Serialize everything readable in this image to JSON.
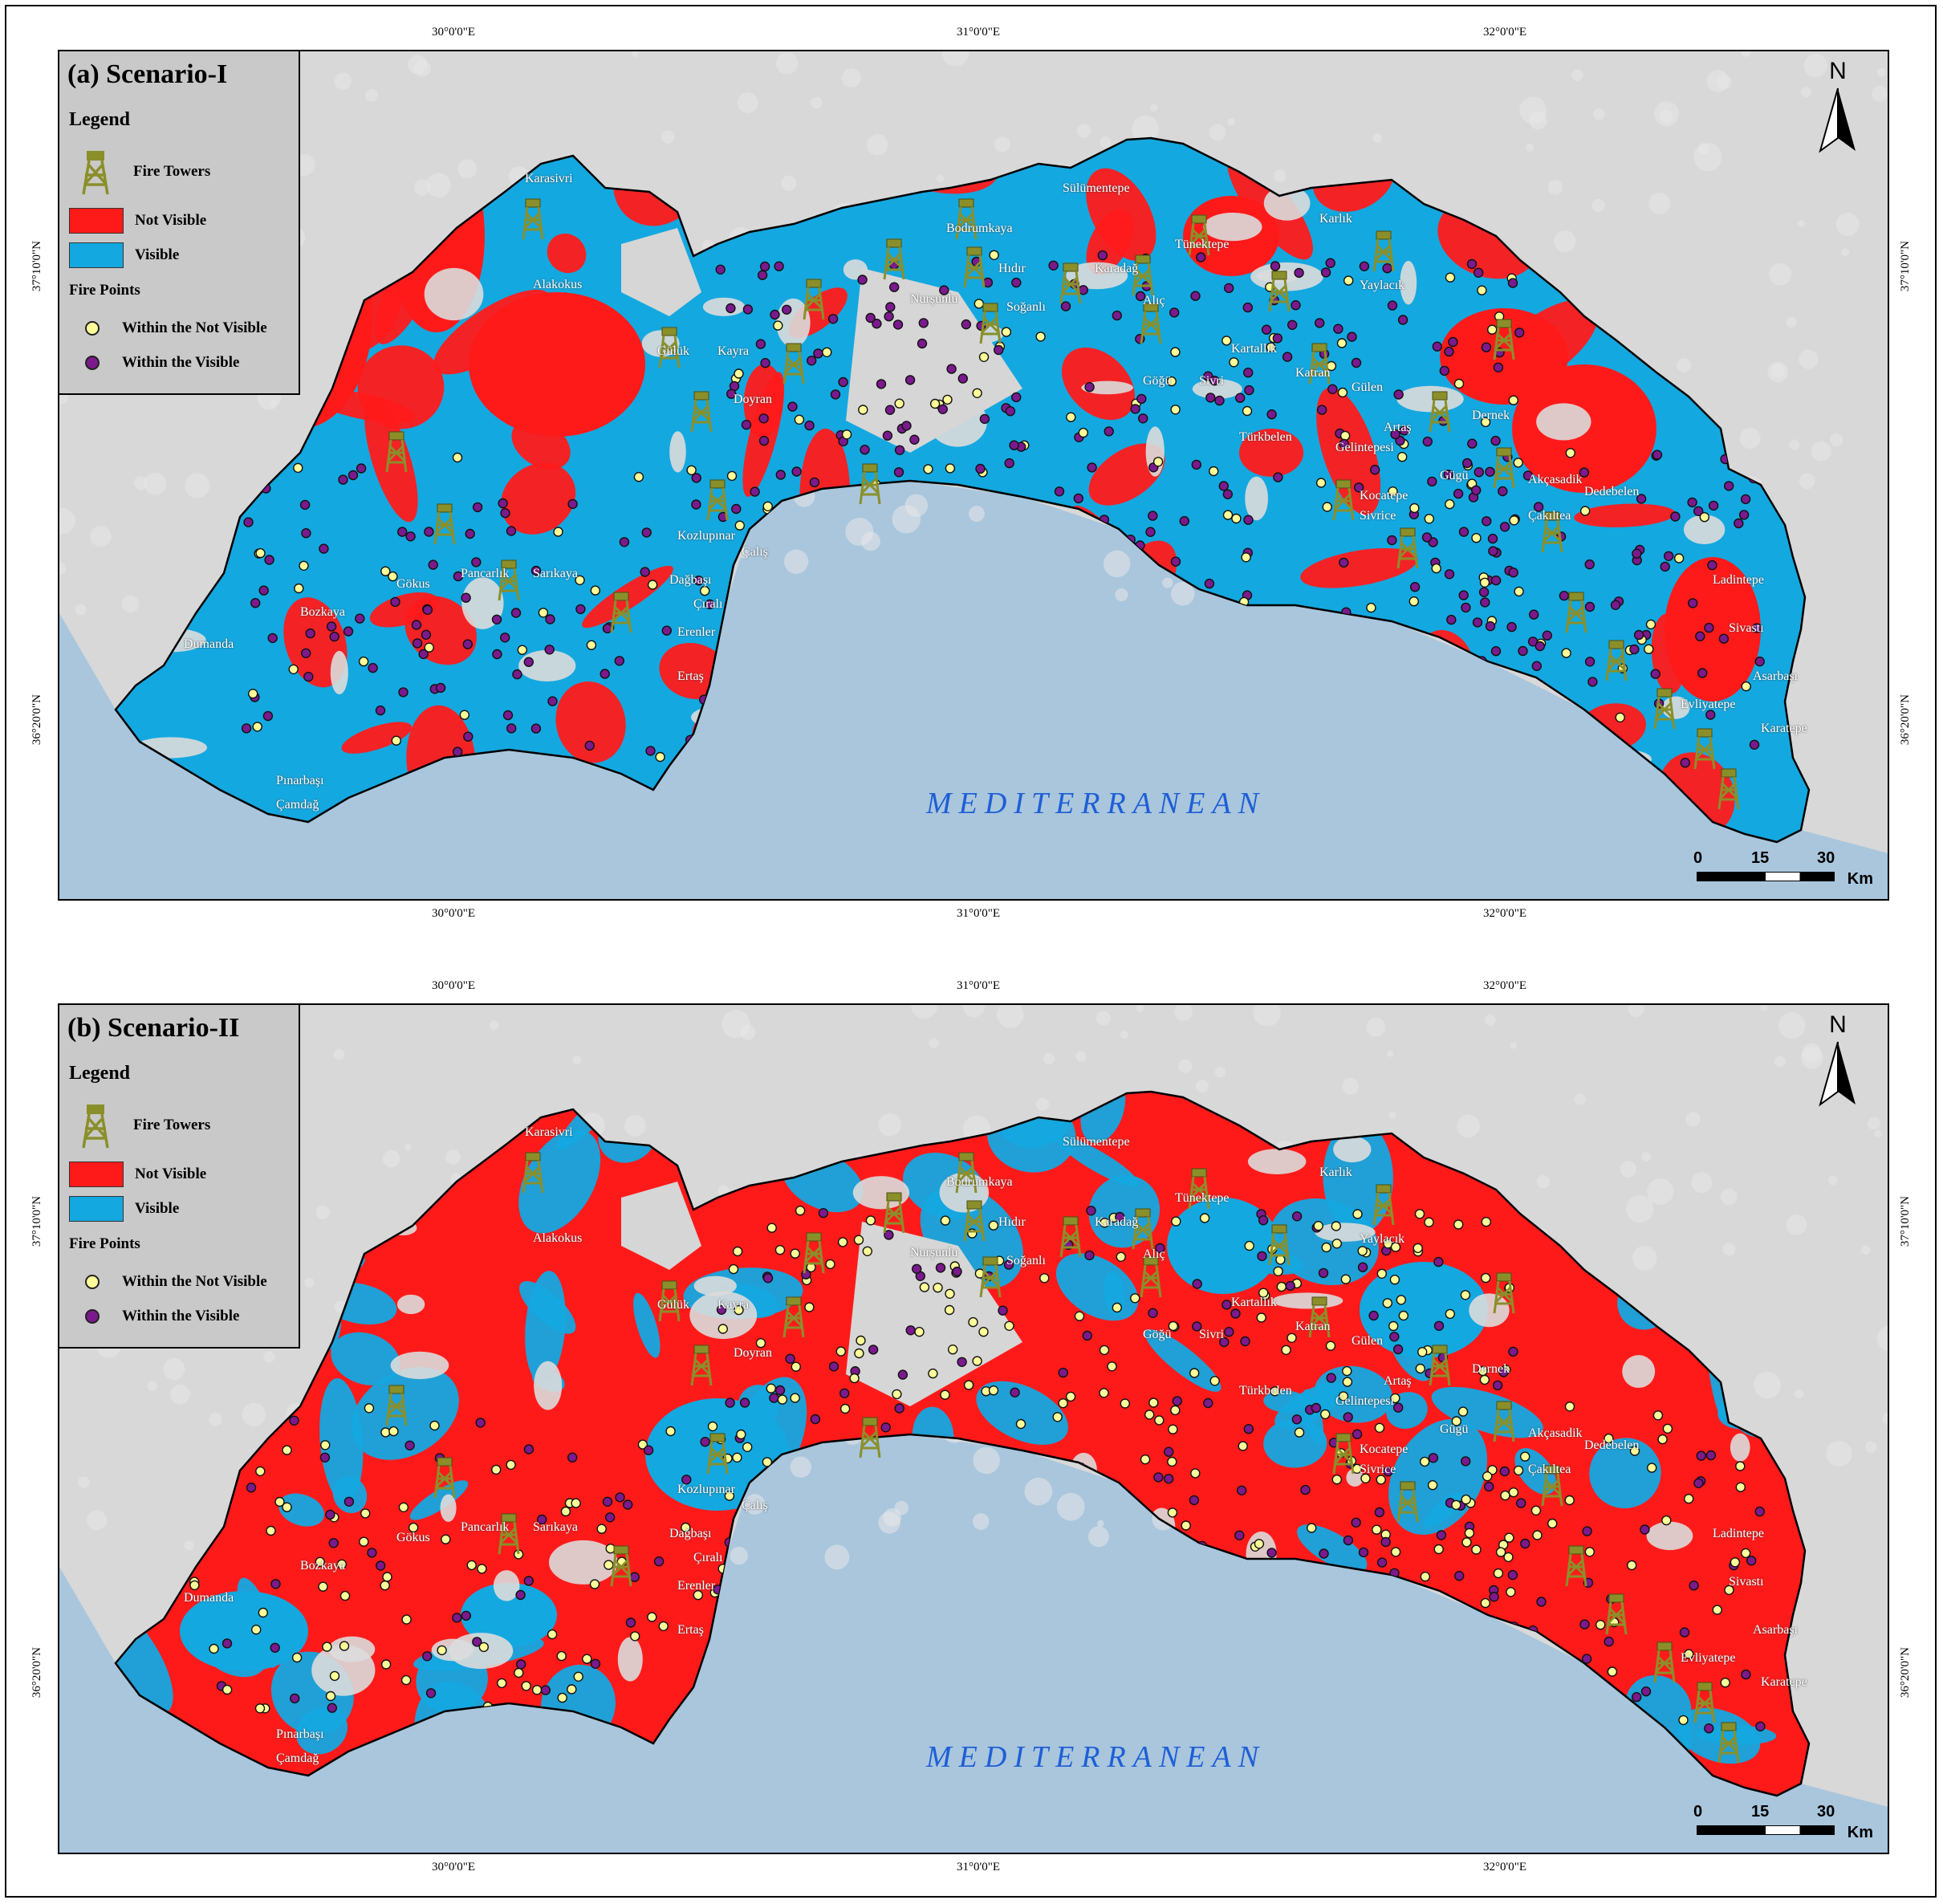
{
  "panels": [
    {
      "title": "(a) Scenario-I",
      "legend_heading": "Legend",
      "tower_label": "Fire Towers",
      "not_visible_label": "Not Visible",
      "visible_label": "Visible",
      "fire_points_heading": "Fire Points",
      "within_not_visible_label": "Within the Not Visible",
      "within_visible_label": "Within the Visible",
      "sea_label": "MEDITERRANEAN",
      "north_label": "N",
      "scale": {
        "s0": "0",
        "s1": "15",
        "s2": "30",
        "unit": "Km"
      },
      "ticks": {
        "x1": "30°0'0\"E",
        "x2": "31°0'0\"E",
        "x3": "32°0'0\"E",
        "y1": "37°10'0\"N",
        "y2": "36°20'0\"N"
      },
      "dominant_class": "visible"
    },
    {
      "title": "(b) Scenario-II",
      "legend_heading": "Legend",
      "tower_label": "Fire Towers",
      "not_visible_label": "Not Visible",
      "visible_label": "Visible",
      "fire_points_heading": "Fire Points",
      "within_not_visible_label": "Within the Not Visible",
      "within_visible_label": "Within the Visible",
      "sea_label": "MEDITERRANEAN",
      "north_label": "N",
      "scale": {
        "s0": "0",
        "s1": "15",
        "s2": "30",
        "unit": "Km"
      },
      "ticks": {
        "x1": "30°0'0\"E",
        "x2": "31°0'0\"E",
        "x3": "32°0'0\"E",
        "y1": "37°10'0\"N",
        "y2": "36°20'0\"N"
      },
      "dominant_class": "not_visible"
    }
  ],
  "colors": {
    "not_visible": "#ff1a1a",
    "visible": "#14a8e0",
    "within_not_visible": "#ffff99",
    "within_visible": "#7a1a8c",
    "sea": "#a9c6dd",
    "land": "#d8d8d8",
    "tower": "#8a8f2a"
  },
  "places": [
    "Karasivri",
    "Alakokus",
    "Gülük",
    "Kayra",
    "Doyran",
    "Kozlupınar",
    "Çalış",
    "Dağbaşı",
    "Çıralı",
    "Erenler",
    "Ertaş",
    "Pancarlık",
    "Sarıkaya",
    "Gökus",
    "Bozkaya",
    "Dumanda",
    "Pınarbaşı",
    "Çamdağ",
    "Bodrumkaya",
    "Sülümentepe",
    "Hıdır",
    "Nurşunlu",
    "Soğanlı",
    "Karadağ",
    "Alıç",
    "Tünektepe",
    "Karlık",
    "Yaylacık",
    "Kartallık",
    "Göğü",
    "Sivri",
    "Katran",
    "Gülen",
    "Artaş",
    "Dernek",
    "Türkbelen",
    "Gelintepesi",
    "Gügü",
    "Akçasadik",
    "Dedebelen",
    "Kocatepe",
    "Sivrice",
    "Çakıltea",
    "Ladintepe",
    "Sivastı",
    "Asarbaşı",
    "Evliyatepe",
    "Karatepe"
  ]
}
